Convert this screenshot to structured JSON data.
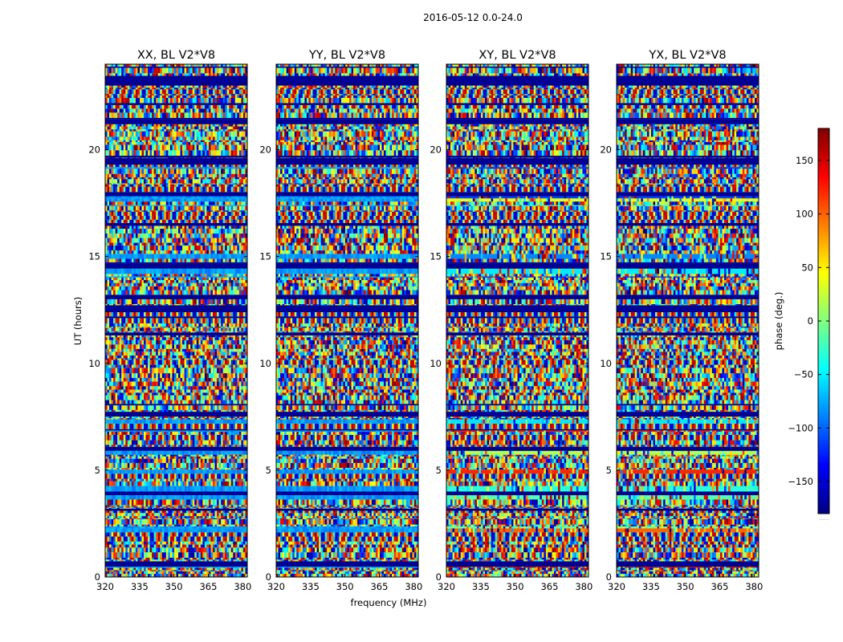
{
  "figure": {
    "suptitle": "2016-05-12 0.0-24.0",
    "xlabel": "frequency (MHz)",
    "ylabel": "UT (hours)",
    "colorbar_label": "phase (deg.)",
    "colorbar_footnote": "......"
  },
  "chart_data": [
    {
      "type": "heatmap",
      "title": "XX, BL V2*V8",
      "polarization": "XX",
      "xlim": [
        320,
        382
      ],
      "ylim": [
        0,
        24
      ],
      "x_ticks": [
        320,
        335,
        350,
        365,
        380
      ],
      "y_ticks": [
        0,
        5,
        10,
        15,
        20
      ],
      "x_tick_labels": [
        "320",
        "335",
        "350",
        "365",
        "380"
      ],
      "y_tick_labels": [
        "0",
        "5",
        "10",
        "15",
        "20"
      ],
      "value_range": [
        -180,
        180
      ],
      "colormap": "jet"
    },
    {
      "type": "heatmap",
      "title": "YY, BL V2*V8",
      "polarization": "YY",
      "xlim": [
        320,
        382
      ],
      "ylim": [
        0,
        24
      ],
      "x_ticks": [
        320,
        335,
        350,
        365,
        380
      ],
      "y_ticks": [
        0,
        5,
        10,
        15,
        20
      ],
      "x_tick_labels": [
        "320",
        "335",
        "350",
        "365",
        "380"
      ],
      "y_tick_labels": [
        "0",
        "5",
        "10",
        "15",
        "20"
      ],
      "value_range": [
        -180,
        180
      ],
      "colormap": "jet"
    },
    {
      "type": "heatmap",
      "title": "XY, BL V2*V8",
      "polarization": "XY",
      "xlim": [
        320,
        382
      ],
      "ylim": [
        0,
        24
      ],
      "x_ticks": [
        320,
        335,
        350,
        365,
        380
      ],
      "y_ticks": [
        0,
        5,
        10,
        15,
        20
      ],
      "x_tick_labels": [
        "320",
        "335",
        "350",
        "365",
        "380"
      ],
      "y_tick_labels": [
        "0",
        "5",
        "10",
        "15",
        "20"
      ],
      "value_range": [
        -180,
        180
      ],
      "colormap": "jet"
    },
    {
      "type": "heatmap",
      "title": "YX, BL V2*V8",
      "polarization": "YX",
      "xlim": [
        320,
        382
      ],
      "ylim": [
        0,
        24
      ],
      "x_ticks": [
        320,
        335,
        350,
        365,
        380
      ],
      "y_ticks": [
        0,
        5,
        10,
        15,
        20
      ],
      "x_tick_labels": [
        "320",
        "335",
        "350",
        "365",
        "380"
      ],
      "y_tick_labels": [
        "0",
        "5",
        "10",
        "15",
        "20"
      ],
      "value_range": [
        -180,
        180
      ],
      "colormap": "jet"
    }
  ],
  "colorbar": {
    "range": [
      -180,
      180
    ],
    "ticks": [
      -150,
      -100,
      -50,
      0,
      50,
      100,
      150
    ],
    "tick_labels": [
      "−150",
      "−100",
      "−50",
      "0",
      "50",
      "100",
      "150"
    ],
    "colormap": "jet"
  }
}
